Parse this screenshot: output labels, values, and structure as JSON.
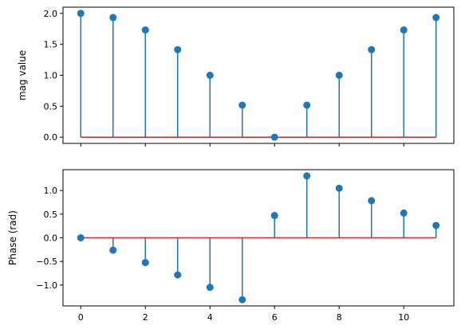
{
  "chart_data": [
    {
      "type": "stem",
      "ylabel": "mag value",
      "x": [
        0,
        1,
        2,
        3,
        4,
        5,
        6,
        7,
        8,
        9,
        10,
        11
      ],
      "values": [
        2.0,
        1.932,
        1.732,
        1.414,
        1.0,
        0.518,
        0.0,
        0.518,
        1.0,
        1.414,
        1.732,
        1.932
      ],
      "xlim": [
        -0.55,
        11.55
      ],
      "ylim": [
        -0.1,
        2.1
      ],
      "yticks": [
        0.0,
        0.5,
        1.0,
        1.5,
        2.0
      ],
      "ytick_labels": [
        "0.0",
        "0.5",
        "1.0",
        "1.5",
        "2.0"
      ],
      "xticks": [
        0,
        2,
        4,
        6,
        8,
        10
      ],
      "xtick_labels": [],
      "baseline": 0,
      "stem_color": "#1f77b4",
      "baseline_color": "#d62728"
    },
    {
      "type": "stem",
      "ylabel": "Phase (rad)",
      "x": [
        0,
        1,
        2,
        3,
        4,
        5,
        6,
        7,
        8,
        9,
        10,
        11
      ],
      "values": [
        0.0,
        -0.262,
        -0.524,
        -0.785,
        -1.047,
        -1.309,
        0.471,
        1.309,
        1.047,
        0.785,
        0.524,
        0.262
      ],
      "xlim": [
        -0.55,
        11.55
      ],
      "ylim": [
        -1.44,
        1.44
      ],
      "yticks": [
        -1.0,
        -0.5,
        0.0,
        0.5,
        1.0
      ],
      "ytick_labels": [
        "−1.0",
        "−0.5",
        "0.0",
        "0.5",
        "1.0"
      ],
      "xticks": [
        0,
        2,
        4,
        6,
        8,
        10
      ],
      "xtick_labels": [
        "0",
        "2",
        "4",
        "6",
        "8",
        "10"
      ],
      "baseline": 0,
      "stem_color": "#1f77b4",
      "baseline_color": "#d62728"
    }
  ]
}
